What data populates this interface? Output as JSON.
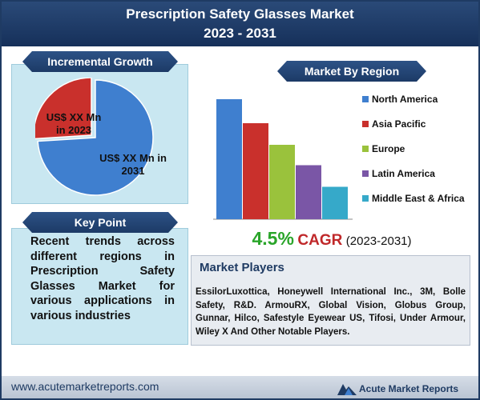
{
  "header": {
    "title_line1": "Prescription Safety Glasses Market",
    "title_line2": "2023 - 2031"
  },
  "incremental_growth": {
    "heading": "Incremental Growth",
    "label_2023": "US$ XX Mn in 2023",
    "label_2031": "US$ XX Mn in 2031"
  },
  "key_point": {
    "heading": "Key Point",
    "text": "Recent trends across different regions in Prescription Safety Glasses Market for various applications in various industries"
  },
  "market_by_region": {
    "heading": "Market By Region"
  },
  "cagr": {
    "value": "4.5%",
    "label": "CAGR",
    "years": "(2023-2031)"
  },
  "market_players": {
    "heading": "Market Players",
    "text": "EssilorLuxottica, Honeywell International Inc., 3M, Bolle Safety, R&D. ArmouRX, Global Vision, Globus Group, Gunnar, Hilco, Safestyle Eyewear US, Tifosi, Under Armour, Wiley X And Other Notable Players."
  },
  "footer": {
    "url": "www.acutemarketreports.com",
    "brand": "Acute Market Reports"
  },
  "colors": {
    "pie_2031": "#3f7fcf",
    "pie_2023": "#c9302c",
    "bar_series": [
      "#3f7fcf",
      "#c9302c",
      "#9ac23c",
      "#7a56a6",
      "#36a9c9"
    ]
  },
  "chart_data": [
    {
      "type": "pie",
      "labels": [
        "US$ XX Mn in 2031",
        "US$ XX Mn in 2023"
      ],
      "values": [
        74,
        26
      ]
    },
    {
      "type": "bar",
      "title": "Market By Region",
      "categories": [
        "North America",
        "Asia Pacific",
        "Europe",
        "Latin America",
        "Middle East & Africa"
      ],
      "values": [
        100,
        80,
        62,
        45,
        27
      ],
      "legend": "right"
    }
  ]
}
